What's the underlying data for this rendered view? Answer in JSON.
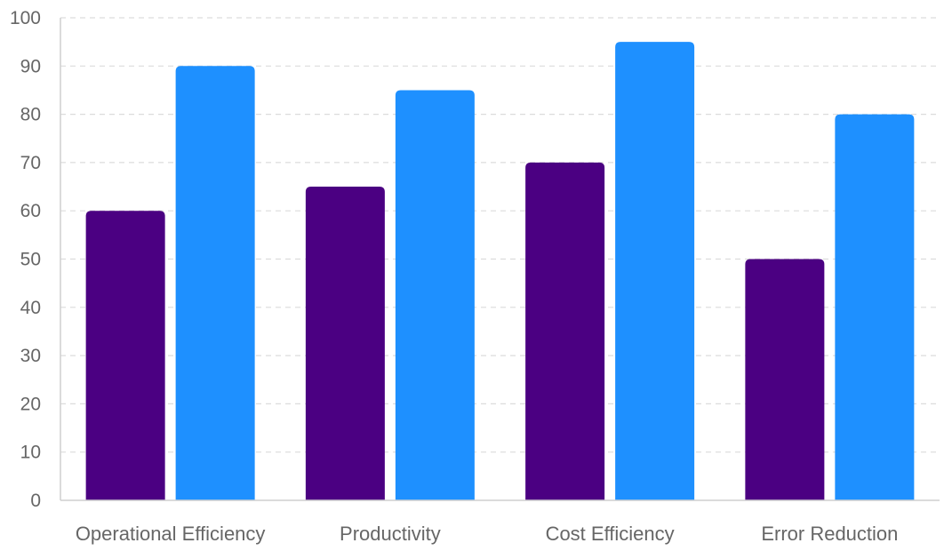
{
  "chart_data": {
    "type": "bar",
    "categories": [
      "Operational Efficiency",
      "Productivity",
      "Cost Efficiency",
      "Error Reduction"
    ],
    "series": [
      {
        "values": [
          60,
          65,
          70,
          50
        ],
        "color": "#4b0082"
      },
      {
        "values": [
          90,
          85,
          95,
          80
        ],
        "color": "#1e90ff"
      }
    ],
    "ylim": [
      0,
      100
    ],
    "yticks": [
      0,
      10,
      20,
      30,
      40,
      50,
      60,
      70,
      80,
      90,
      100
    ],
    "grid": true,
    "title": "",
    "xlabel": "",
    "ylabel": ""
  }
}
